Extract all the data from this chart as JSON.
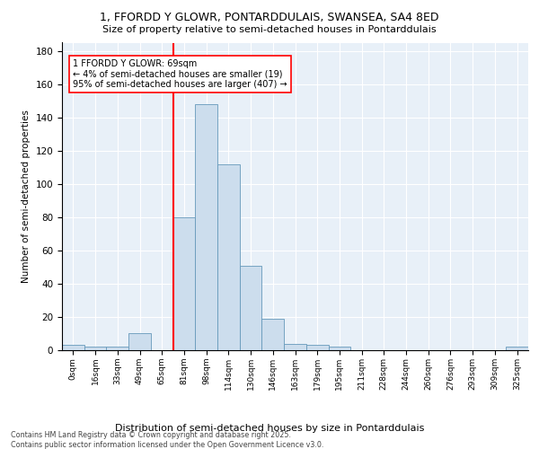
{
  "title_line1": "1, FFORDD Y GLOWR, PONTARDDULAIS, SWANSEA, SA4 8ED",
  "title_line2": "Size of property relative to semi-detached houses in Pontarddulais",
  "xlabel": "Distribution of semi-detached houses by size in Pontarddulais",
  "ylabel": "Number of semi-detached properties",
  "categories": [
    "0sqm",
    "16sqm",
    "33sqm",
    "49sqm",
    "65sqm",
    "81sqm",
    "98sqm",
    "114sqm",
    "130sqm",
    "146sqm",
    "163sqm",
    "179sqm",
    "195sqm",
    "211sqm",
    "228sqm",
    "244sqm",
    "260sqm",
    "276sqm",
    "293sqm",
    "309sqm",
    "325sqm"
  ],
  "values": [
    3,
    2,
    2,
    10,
    0,
    80,
    148,
    112,
    51,
    19,
    4,
    3,
    2,
    0,
    0,
    0,
    0,
    0,
    0,
    0,
    2
  ],
  "bar_color": "#ccdded",
  "bar_edge_color": "#6699bb",
  "vline_x": 5,
  "vline_color": "red",
  "annotation_text": "1 FFORDD Y GLOWR: 69sqm\n← 4% of semi-detached houses are smaller (19)\n95% of semi-detached houses are larger (407) →",
  "ylim": [
    0,
    185
  ],
  "yticks": [
    0,
    20,
    40,
    60,
    80,
    100,
    120,
    140,
    160,
    180
  ],
  "footnote": "Contains HM Land Registry data © Crown copyright and database right 2025.\nContains public sector information licensed under the Open Government Licence v3.0.",
  "plot_bg_color": "#e8f0f8"
}
